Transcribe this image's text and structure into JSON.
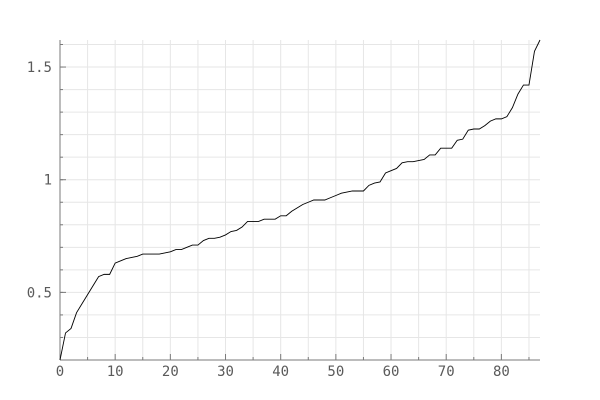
{
  "chart_data": {
    "type": "line",
    "title": "",
    "xlabel": "",
    "ylabel": "",
    "grid": true,
    "xlim": [
      0,
      87
    ],
    "ylim": [
      0.2,
      1.62
    ],
    "x_ticks": [
      {
        "value": 0,
        "label": "0"
      },
      {
        "value": 10,
        "label": "10"
      },
      {
        "value": 20,
        "label": "20"
      },
      {
        "value": 30,
        "label": "30"
      },
      {
        "value": 40,
        "label": "40"
      },
      {
        "value": 50,
        "label": "50"
      },
      {
        "value": 60,
        "label": "60"
      },
      {
        "value": 70,
        "label": "70"
      },
      {
        "value": 80,
        "label": "80"
      }
    ],
    "y_ticks": [
      {
        "value": 0.5,
        "label": "0.5"
      },
      {
        "value": 1,
        "label": "1"
      },
      {
        "value": 1.5,
        "label": "1.5"
      }
    ],
    "series": [
      {
        "name": "sorted values",
        "color": "#000000",
        "x": [
          0,
          1,
          2,
          3,
          4,
          5,
          6,
          7,
          8,
          9,
          10,
          11,
          12,
          13,
          14,
          15,
          16,
          17,
          18,
          19,
          20,
          21,
          22,
          23,
          24,
          25,
          26,
          27,
          28,
          29,
          30,
          31,
          32,
          33,
          34,
          35,
          36,
          37,
          38,
          39,
          40,
          41,
          42,
          43,
          44,
          45,
          46,
          47,
          48,
          49,
          50,
          51,
          52,
          53,
          54,
          55,
          56,
          57,
          58,
          59,
          60,
          61,
          62,
          63,
          64,
          65,
          66,
          67,
          68,
          69,
          70,
          71,
          72,
          73,
          74,
          75,
          76,
          77,
          78,
          79,
          80,
          81,
          82,
          83,
          84,
          85,
          86,
          87
        ],
        "values": [
          0.2,
          0.32,
          0.34,
          0.41,
          0.45,
          0.49,
          0.53,
          0.57,
          0.58,
          0.58,
          0.63,
          0.64,
          0.65,
          0.655,
          0.66,
          0.67,
          0.67,
          0.67,
          0.67,
          0.675,
          0.68,
          0.69,
          0.69,
          0.7,
          0.71,
          0.71,
          0.73,
          0.74,
          0.74,
          0.745,
          0.755,
          0.77,
          0.775,
          0.79,
          0.815,
          0.815,
          0.815,
          0.825,
          0.825,
          0.825,
          0.84,
          0.84,
          0.86,
          0.875,
          0.89,
          0.9,
          0.91,
          0.91,
          0.91,
          0.92,
          0.93,
          0.94,
          0.945,
          0.95,
          0.95,
          0.95,
          0.975,
          0.985,
          0.99,
          1.03,
          1.04,
          1.05,
          1.075,
          1.08,
          1.08,
          1.085,
          1.09,
          1.11,
          1.11,
          1.14,
          1.14,
          1.14,
          1.175,
          1.18,
          1.22,
          1.225,
          1.225,
          1.24,
          1.26,
          1.27,
          1.27,
          1.28,
          1.32,
          1.38,
          1.42,
          1.42,
          1.57,
          1.62
        ]
      }
    ]
  }
}
